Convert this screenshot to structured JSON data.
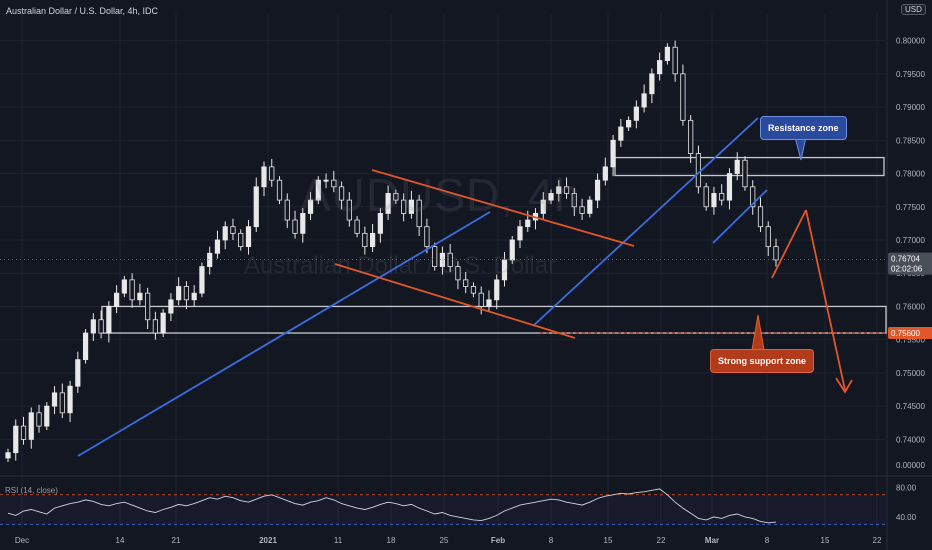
{
  "header": {
    "symbol_title": "Australian Dollar / U.S. Dollar, 4h, IDC",
    "watermark_symbol": "AUDUSD, 4h",
    "watermark_name": "Australian Dollar / U.S. Dollar",
    "currency_label": "USD"
  },
  "annotations": {
    "resistance_label": "Resistance zone",
    "support_label": "Strong support zone"
  },
  "price_labels": {
    "current_price": "0.76704",
    "countdown": "02:02:06",
    "support_level": "0.75600"
  },
  "rsi": {
    "label": "RSI (14, close)",
    "ticks": [
      "80.00",
      "40.00"
    ]
  },
  "colors": {
    "background": "#131722",
    "grid": "#1f2330",
    "candle": "#e8e8e8",
    "blue_line": "#3a6ee0",
    "orange_line": "#e1572a",
    "zone_border": "#c7c9cf",
    "resistance_callout": "#2a4a9e",
    "support_callout": "#b23b1c",
    "rsi_line": "#d1d4dc"
  },
  "chart_data": {
    "type": "candlestick",
    "title": "Australian Dollar / U.S. Dollar, 4h, IDC",
    "y_ticks": [
      "0.80000",
      "0.79500",
      "0.79000",
      "0.78500",
      "0.78000",
      "0.77500",
      "0.77000",
      "0.76500",
      "0.76000",
      "0.75500",
      "0.75000",
      "0.74500",
      "0.74000"
    ],
    "ylim": [
      0.7375,
      0.804
    ],
    "x_ticks": [
      "Dec",
      "14",
      "21",
      "2021",
      "11",
      "18",
      "25",
      "Feb",
      "8",
      "15",
      "22",
      "Mar",
      "8",
      "15",
      "22"
    ],
    "series": [
      {
        "values": [
          [
            0,
            0.738
          ],
          [
            1,
            0.742
          ],
          [
            2,
            0.74
          ],
          [
            3,
            0.744
          ],
          [
            4,
            0.742
          ],
          [
            5,
            0.745
          ],
          [
            6,
            0.747
          ],
          [
            7,
            0.744
          ],
          [
            8,
            0.748
          ],
          [
            9,
            0.752
          ],
          [
            10,
            0.756
          ],
          [
            11,
            0.758
          ],
          [
            12,
            0.756
          ],
          [
            13,
            0.76
          ],
          [
            14,
            0.762
          ],
          [
            15,
            0.764
          ],
          [
            16,
            0.761
          ],
          [
            17,
            0.762
          ],
          [
            18,
            0.758
          ],
          [
            19,
            0.756
          ],
          [
            20,
            0.759
          ],
          [
            21,
            0.761
          ],
          [
            22,
            0.763
          ],
          [
            23,
            0.761
          ],
          [
            24,
            0.762
          ],
          [
            25,
            0.766
          ],
          [
            26,
            0.768
          ],
          [
            27,
            0.77
          ],
          [
            28,
            0.772
          ],
          [
            29,
            0.771
          ],
          [
            30,
            0.769
          ],
          [
            31,
            0.772
          ],
          [
            32,
            0.778
          ],
          [
            33,
            0.781
          ],
          [
            34,
            0.779
          ],
          [
            35,
            0.776
          ],
          [
            36,
            0.773
          ],
          [
            37,
            0.771
          ],
          [
            38,
            0.774
          ],
          [
            39,
            0.776
          ],
          [
            40,
            0.779
          ],
          [
            41,
            0.779
          ],
          [
            42,
            0.778
          ],
          [
            43,
            0.776
          ],
          [
            44,
            0.773
          ],
          [
            45,
            0.771
          ],
          [
            46,
            0.769
          ],
          [
            47,
            0.771
          ],
          [
            48,
            0.774
          ],
          [
            49,
            0.777
          ],
          [
            50,
            0.776
          ],
          [
            51,
            0.774
          ],
          [
            52,
            0.776
          ],
          [
            53,
            0.772
          ],
          [
            54,
            0.769
          ],
          [
            55,
            0.766
          ],
          [
            56,
            0.768
          ],
          [
            57,
            0.766
          ],
          [
            58,
            0.764
          ],
          [
            59,
            0.763
          ],
          [
            60,
            0.762
          ],
          [
            61,
            0.76
          ],
          [
            62,
            0.761
          ],
          [
            63,
            0.764
          ],
          [
            64,
            0.767
          ],
          [
            65,
            0.77
          ],
          [
            66,
            0.772
          ],
          [
            67,
            0.773
          ],
          [
            68,
            0.774
          ],
          [
            69,
            0.776
          ],
          [
            70,
            0.777
          ],
          [
            71,
            0.778
          ],
          [
            72,
            0.777
          ],
          [
            73,
            0.775
          ],
          [
            74,
            0.774
          ],
          [
            75,
            0.776
          ],
          [
            76,
            0.779
          ],
          [
            77,
            0.781
          ],
          [
            78,
            0.785
          ],
          [
            79,
            0.787
          ],
          [
            80,
            0.788
          ],
          [
            81,
            0.79
          ],
          [
            82,
            0.792
          ],
          [
            83,
            0.795
          ],
          [
            84,
            0.797
          ],
          [
            85,
            0.799
          ],
          [
            86,
            0.795
          ],
          [
            87,
            0.788
          ],
          [
            88,
            0.783
          ],
          [
            89,
            0.778
          ],
          [
            90,
            0.775
          ],
          [
            91,
            0.777
          ],
          [
            92,
            0.776
          ],
          [
            93,
            0.78
          ],
          [
            94,
            0.782
          ],
          [
            95,
            0.778
          ],
          [
            96,
            0.775
          ],
          [
            97,
            0.772
          ],
          [
            98,
            0.769
          ],
          [
            99,
            0.767
          ]
        ]
      }
    ],
    "rsi_series": [
      45,
      42,
      48,
      50,
      47,
      44,
      52,
      55,
      58,
      60,
      63,
      61,
      57,
      55,
      58,
      60,
      56,
      52,
      48,
      46,
      50,
      53,
      57,
      55,
      58,
      62,
      66,
      64,
      68,
      66,
      62,
      60,
      64,
      68,
      70,
      66,
      62,
      58,
      56,
      60,
      62,
      66,
      63,
      58,
      55,
      52,
      50,
      53,
      57,
      60,
      58,
      55,
      57,
      52,
      48,
      44,
      46,
      42,
      40,
      38,
      36,
      35,
      38,
      42,
      48,
      52,
      56,
      58,
      60,
      62,
      64,
      63,
      60,
      58,
      56,
      60,
      65,
      68,
      70,
      72,
      71,
      73,
      74,
      76,
      78,
      70,
      60,
      52,
      45,
      38,
      36,
      40,
      38,
      42,
      44,
      40,
      38,
      34,
      32,
      33
    ],
    "rsi_ylim": [
      25,
      90
    ],
    "annotations": [
      "Resistance zone",
      "Strong support zone"
    ]
  }
}
